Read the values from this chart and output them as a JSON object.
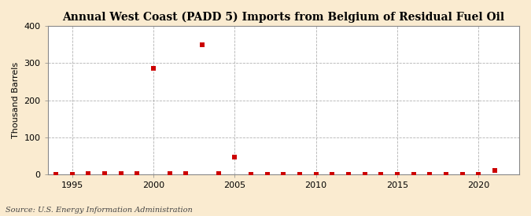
{
  "title": "Annual West Coast (PADD 5) Imports from Belgium of Residual Fuel Oil",
  "ylabel": "Thousand Barrels",
  "source": "Source: U.S. Energy Information Administration",
  "background_color": "#faebd0",
  "plot_background_color": "#ffffff",
  "marker_color": "#cc0000",
  "marker_size": 5,
  "marker_style": "s",
  "xlim": [
    1993.5,
    2022.5
  ],
  "ylim": [
    0,
    400
  ],
  "yticks": [
    0,
    100,
    200,
    300,
    400
  ],
  "xticks": [
    1995,
    2000,
    2005,
    2010,
    2015,
    2020
  ],
  "grid_color": "#aaaaaa",
  "data": [
    [
      1994,
      0
    ],
    [
      1995,
      0
    ],
    [
      1996,
      2
    ],
    [
      1997,
      2
    ],
    [
      1998,
      2
    ],
    [
      1999,
      2
    ],
    [
      2000,
      285
    ],
    [
      2001,
      2
    ],
    [
      2002,
      2
    ],
    [
      2003,
      350
    ],
    [
      2004,
      2
    ],
    [
      2005,
      47
    ],
    [
      2006,
      0
    ],
    [
      2007,
      0
    ],
    [
      2008,
      0
    ],
    [
      2009,
      0
    ],
    [
      2010,
      0
    ],
    [
      2011,
      0
    ],
    [
      2012,
      0
    ],
    [
      2013,
      0
    ],
    [
      2014,
      0
    ],
    [
      2015,
      0
    ],
    [
      2016,
      0
    ],
    [
      2017,
      0
    ],
    [
      2018,
      0
    ],
    [
      2019,
      0
    ],
    [
      2020,
      0
    ],
    [
      2021,
      10
    ]
  ]
}
